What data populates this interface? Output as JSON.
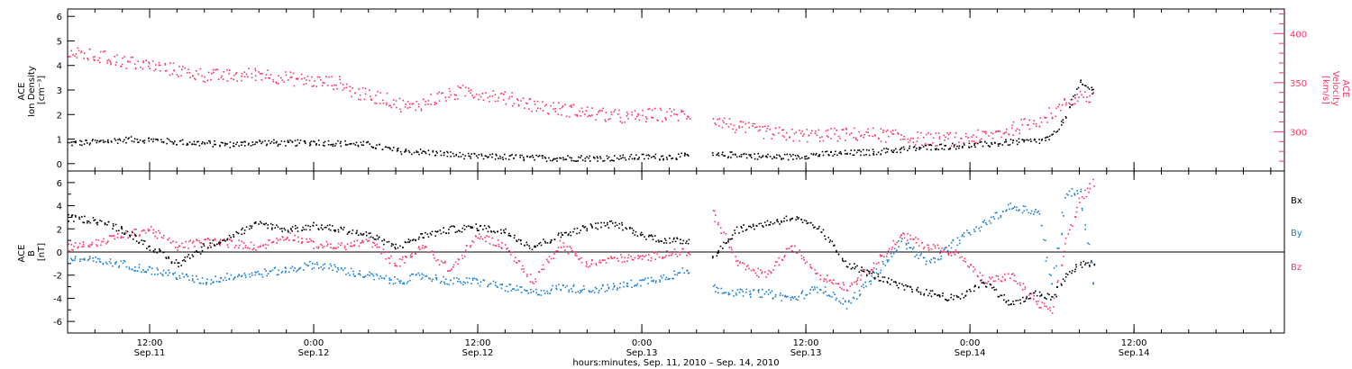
{
  "time_axis": {
    "title": "hours:minutes, Sep. 11, 2010 – Sep. 14, 2010",
    "range": [
      "Sep 11 06:00",
      "Sep 14 23:00"
    ],
    "ticks": [
      {
        "time": "Sep 11 12:00",
        "hour": "12:00",
        "date": "Sep.11"
      },
      {
        "time": "Sep 12 00:00",
        "hour": "0:00",
        "date": "Sep.12"
      },
      {
        "time": "Sep 12 12:00",
        "hour": "12:00",
        "date": "Sep.12"
      },
      {
        "time": "Sep 13 00:00",
        "hour": "0:00",
        "date": "Sep.13"
      },
      {
        "time": "Sep 13 12:00",
        "hour": "12:00",
        "date": "Sep.13"
      },
      {
        "time": "Sep 14 00:00",
        "hour": "0:00",
        "date": "Sep.14"
      },
      {
        "time": "Sep 14 12:00",
        "hour": "12:00",
        "date": "Sep.14"
      }
    ]
  },
  "colors": {
    "black": "#000000",
    "pink": "#ff3366",
    "blue": "#1a7fd4"
  },
  "chart_data": [
    {
      "type": "scatter",
      "panel": "plasma",
      "ylabel_lines": [
        "ACE",
        "Ion Density",
        "[cm⁻³]"
      ],
      "y2label_lines": [
        "ACE",
        "Velocity",
        "[km/s]"
      ],
      "ylim": [
        -0.3,
        6.3
      ],
      "y2lim": [
        260,
        425
      ],
      "yticks": [
        0,
        1,
        2,
        3,
        4,
        5,
        6
      ],
      "y2ticks": [
        300,
        350,
        400
      ],
      "data_gap": [
        "Sep 13 03:30",
        "Sep 13 05:00"
      ],
      "series": [
        {
          "name": "",
          "axis": "left",
          "color": "black",
          "x": [
            "Sep 11 06:00",
            "Sep 11 08:00",
            "Sep 11 10:00",
            "Sep 11 12:00",
            "Sep 11 14:00",
            "Sep 11 16:00",
            "Sep 11 18:00",
            "Sep 11 20:00",
            "Sep 11 22:00",
            "Sep 12 00:00",
            "Sep 12 02:00",
            "Sep 12 04:00",
            "Sep 12 06:00",
            "Sep 12 08:00",
            "Sep 12 10:00",
            "Sep 12 12:00",
            "Sep 12 14:00",
            "Sep 12 16:00",
            "Sep 12 18:00",
            "Sep 12 20:00",
            "Sep 12 22:00",
            "Sep 13 00:00",
            "Sep 13 02:00",
            "Sep 13 03:30",
            "Sep 13 05:00",
            "Sep 13 07:00",
            "Sep 13 09:00",
            "Sep 13 11:00",
            "Sep 13 13:00",
            "Sep 13 15:00",
            "Sep 13 17:00",
            "Sep 13 19:00",
            "Sep 13 21:00",
            "Sep 13 23:00",
            "Sep 14 01:00",
            "Sep 14 03:00",
            "Sep 14 05:00",
            "Sep 14 06:00",
            "Sep 14 07:00",
            "Sep 14 08:00",
            "Sep 14 09:00"
          ],
          "values": [
            0.85,
            0.9,
            1.0,
            1.0,
            0.9,
            0.85,
            0.8,
            0.9,
            0.85,
            0.9,
            0.85,
            0.8,
            0.55,
            0.5,
            0.4,
            0.3,
            0.3,
            0.25,
            0.25,
            0.25,
            0.25,
            0.3,
            0.3,
            0.35,
            0.35,
            0.4,
            0.3,
            0.3,
            0.4,
            0.45,
            0.5,
            0.6,
            0.7,
            0.75,
            0.8,
            0.9,
            0.95,
            1.1,
            2.0,
            3.3,
            3.0
          ]
        },
        {
          "name": "",
          "axis": "right",
          "color": "pink",
          "x": [
            "Sep 11 06:00",
            "Sep 11 08:00",
            "Sep 11 10:00",
            "Sep 11 12:00",
            "Sep 11 14:00",
            "Sep 11 16:00",
            "Sep 11 18:00",
            "Sep 11 20:00",
            "Sep 11 22:00",
            "Sep 12 00:00",
            "Sep 12 02:00",
            "Sep 12 03:00",
            "Sep 12 05:00",
            "Sep 12 07:00",
            "Sep 12 09:00",
            "Sep 12 11:00",
            "Sep 12 13:00",
            "Sep 12 15:00",
            "Sep 12 17:00",
            "Sep 12 19:00",
            "Sep 12 21:00",
            "Sep 12 23:00",
            "Sep 13 01:00",
            "Sep 13 03:30",
            "Sep 13 05:00",
            "Sep 13 07:00",
            "Sep 13 09:00",
            "Sep 13 11:00",
            "Sep 13 13:00",
            "Sep 13 15:00",
            "Sep 13 17:00",
            "Sep 13 19:00",
            "Sep 13 21:00",
            "Sep 13 23:00",
            "Sep 14 01:00",
            "Sep 14 03:00",
            "Sep 14 05:00",
            "Sep 14 06:00",
            "Sep 14 07:00",
            "Sep 14 08:00",
            "Sep 14 09:00"
          ],
          "values": [
            380,
            378,
            372,
            368,
            363,
            358,
            357,
            360,
            355,
            352,
            350,
            340,
            335,
            325,
            335,
            342,
            338,
            332,
            325,
            322,
            318,
            315,
            318,
            318,
            315,
            305,
            300,
            297,
            297,
            298,
            298,
            295,
            293,
            293,
            296,
            303,
            312,
            320,
            330,
            338,
            334
          ]
        }
      ]
    },
    {
      "type": "scatter",
      "panel": "magnetic_field",
      "ylabel_lines": [
        "ACE",
        "B",
        "[nT]"
      ],
      "ylim": [
        -7,
        7
      ],
      "yticks": [
        -6,
        -4,
        -2,
        0,
        2,
        4,
        6
      ],
      "zero_line": true,
      "data_gap": [
        "Sep 13 03:30",
        "Sep 13 05:00"
      ],
      "series": [
        {
          "name": "Bx",
          "color": "black",
          "x": [
            "Sep 11 06:00",
            "Sep 11 08:00",
            "Sep 11 10:00",
            "Sep 11 12:00",
            "Sep 11 14:00",
            "Sep 11 16:00",
            "Sep 11 18:00",
            "Sep 11 20:00",
            "Sep 11 22:00",
            "Sep 12 00:00",
            "Sep 12 02:00",
            "Sep 12 04:00",
            "Sep 12 06:00",
            "Sep 12 08:00",
            "Sep 12 10:00",
            "Sep 12 12:00",
            "Sep 12 14:00",
            "Sep 12 16:00",
            "Sep 12 18:00",
            "Sep 12 20:00",
            "Sep 12 22:00",
            "Sep 13 00:00",
            "Sep 13 02:00",
            "Sep 13 03:30",
            "Sep 13 05:00",
            "Sep 13 07:00",
            "Sep 13 09:00",
            "Sep 13 11:00",
            "Sep 13 13:00",
            "Sep 13 15:00",
            "Sep 13 17:00",
            "Sep 13 19:00",
            "Sep 13 21:00",
            "Sep 13 23:00",
            "Sep 14 01:00",
            "Sep 14 03:00",
            "Sep 14 05:00",
            "Sep 14 06:00",
            "Sep 14 07:00",
            "Sep 14 08:00",
            "Sep 14 09:00"
          ],
          "values": [
            3.0,
            2.8,
            2.0,
            0.5,
            -1.0,
            0.5,
            1.5,
            2.5,
            2.0,
            2.3,
            2.0,
            1.5,
            0.5,
            1.5,
            2.0,
            2.2,
            1.8,
            0.5,
            1.5,
            2.2,
            2.5,
            1.5,
            1.0,
            1.0,
            -0.5,
            2.0,
            2.5,
            3.0,
            2.0,
            -1.0,
            -2.0,
            -3.0,
            -3.5,
            -4.0,
            -2.5,
            -4.5,
            -3.5,
            -4.0,
            -2.0,
            -1.0,
            -1.0
          ]
        },
        {
          "name": "By",
          "color": "blue",
          "x": [
            "Sep 11 06:00",
            "Sep 11 08:00",
            "Sep 11 10:00",
            "Sep 11 12:00",
            "Sep 11 14:00",
            "Sep 11 16:00",
            "Sep 11 18:00",
            "Sep 11 20:00",
            "Sep 11 22:00",
            "Sep 12 00:00",
            "Sep 12 02:00",
            "Sep 12 04:00",
            "Sep 12 06:00",
            "Sep 12 08:00",
            "Sep 12 10:00",
            "Sep 12 12:00",
            "Sep 12 14:00",
            "Sep 12 16:00",
            "Sep 12 18:00",
            "Sep 12 20:00",
            "Sep 12 22:00",
            "Sep 13 00:00",
            "Sep 13 02:00",
            "Sep 13 03:30",
            "Sep 13 05:00",
            "Sep 13 07:00",
            "Sep 13 09:00",
            "Sep 13 11:00",
            "Sep 13 13:00",
            "Sep 13 15:00",
            "Sep 13 17:00",
            "Sep 13 19:00",
            "Sep 13 21:00",
            "Sep 13 23:00",
            "Sep 14 01:00",
            "Sep 14 03:00",
            "Sep 14 05:00",
            "Sep 14 06:00",
            "Sep 14 07:00",
            "Sep 14 08:00",
            "Sep 14 09:00"
          ],
          "values": [
            -0.5,
            -0.7,
            -1.0,
            -1.5,
            -2.0,
            -2.5,
            -2.0,
            -1.8,
            -1.5,
            -1.0,
            -1.5,
            -2.0,
            -2.5,
            -2.0,
            -2.5,
            -2.5,
            -3.0,
            -3.5,
            -3.0,
            -3.2,
            -3.0,
            -2.5,
            -2.0,
            -1.5,
            -3.0,
            -3.5,
            -3.5,
            -4.0,
            -3.0,
            -4.5,
            -2.0,
            1.0,
            -1.0,
            1.0,
            2.5,
            4.0,
            3.5,
            -3.0,
            5.0,
            5.5,
            -2.5
          ]
        },
        {
          "name": "Bz",
          "color": "pink",
          "x": [
            "Sep 11 06:00",
            "Sep 11 08:00",
            "Sep 11 10:00",
            "Sep 11 12:00",
            "Sep 11 14:00",
            "Sep 11 16:00",
            "Sep 11 18:00",
            "Sep 11 20:00",
            "Sep 11 22:00",
            "Sep 12 00:00",
            "Sep 12 02:00",
            "Sep 12 04:00",
            "Sep 12 06:00",
            "Sep 12 08:00",
            "Sep 12 10:00",
            "Sep 12 12:00",
            "Sep 12 14:00",
            "Sep 12 16:00",
            "Sep 12 18:00",
            "Sep 12 20:00",
            "Sep 12 22:00",
            "Sep 13 00:00",
            "Sep 13 02:00",
            "Sep 13 03:30",
            "Sep 13 05:00",
            "Sep 13 07:00",
            "Sep 13 09:00",
            "Sep 13 11:00",
            "Sep 13 13:00",
            "Sep 13 15:00",
            "Sep 13 17:00",
            "Sep 13 19:00",
            "Sep 13 21:00",
            "Sep 13 23:00",
            "Sep 14 01:00",
            "Sep 14 03:00",
            "Sep 14 05:00",
            "Sep 14 06:00",
            "Sep 14 07:00",
            "Sep 14 08:00",
            "Sep 14 09:00"
          ],
          "values": [
            0.5,
            0.8,
            1.5,
            2.0,
            0.5,
            1.0,
            0.8,
            0.5,
            1.5,
            0.7,
            0.5,
            1.0,
            -1.0,
            0.5,
            -1.5,
            1.5,
            0.5,
            -2.5,
            0.8,
            -1.0,
            -0.5,
            -0.5,
            0.0,
            0.0,
            4.0,
            -1.0,
            -2.0,
            0.5,
            -2.0,
            -3.0,
            -1.0,
            1.5,
            0.5,
            0.0,
            -2.5,
            -2.0,
            -4.5,
            -5.0,
            1.0,
            4.5,
            6.0
          ]
        }
      ]
    }
  ]
}
